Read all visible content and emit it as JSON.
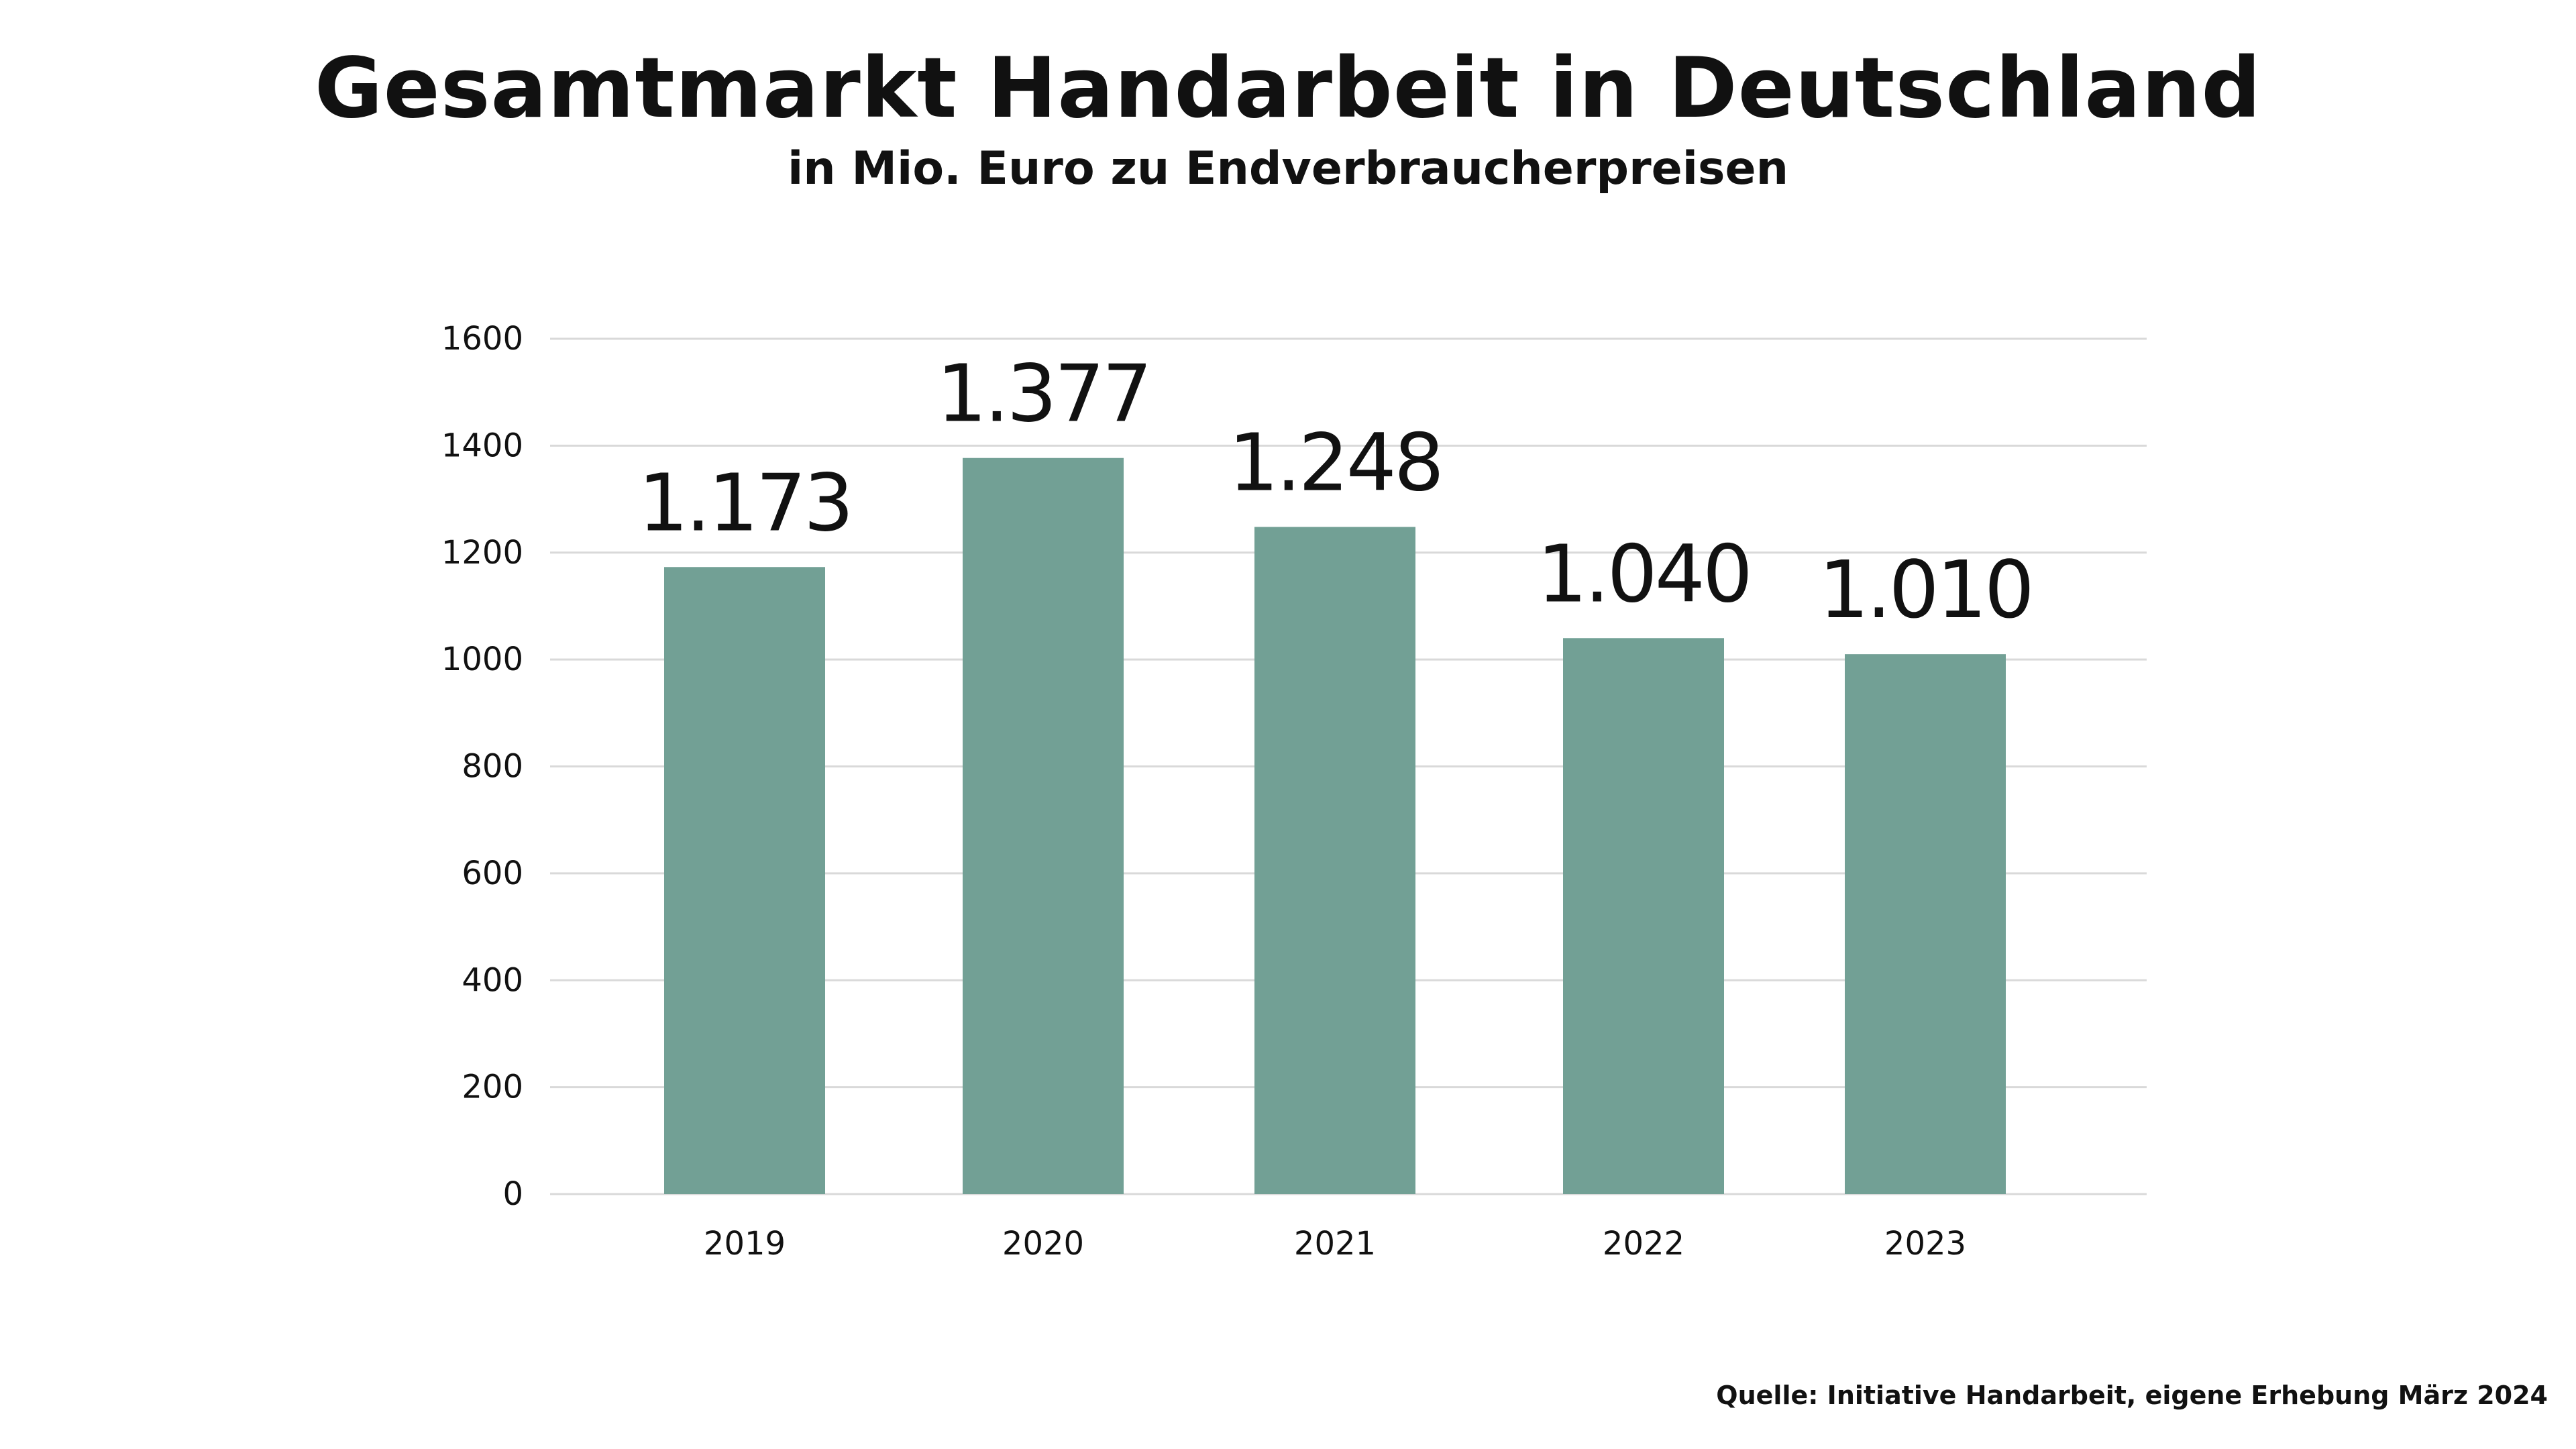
{
  "chart_data": {
    "type": "bar",
    "title": "Gesamtmarkt Handarbeit in Deutschland",
    "subtitle": "in Mio. Euro zu Endverbraucherpreisen",
    "categories": [
      "2019",
      "2020",
      "2021",
      "2022",
      "2023"
    ],
    "values": [
      1173,
      1377,
      1248,
      1040,
      1010
    ],
    "data_labels": [
      "1.173",
      "1.377",
      "1.248",
      "1.040",
      "1.010"
    ],
    "y_ticks": [
      0,
      200,
      400,
      600,
      800,
      1000,
      1200,
      1400,
      1600
    ],
    "ylim": [
      0,
      1600
    ],
    "grid": true,
    "legend": "none",
    "bar_color": "#72a095",
    "grid_color": "#d9d9d9"
  },
  "source": "Quelle: Initiative Handarbeit, eigene Erhebung März 2024"
}
